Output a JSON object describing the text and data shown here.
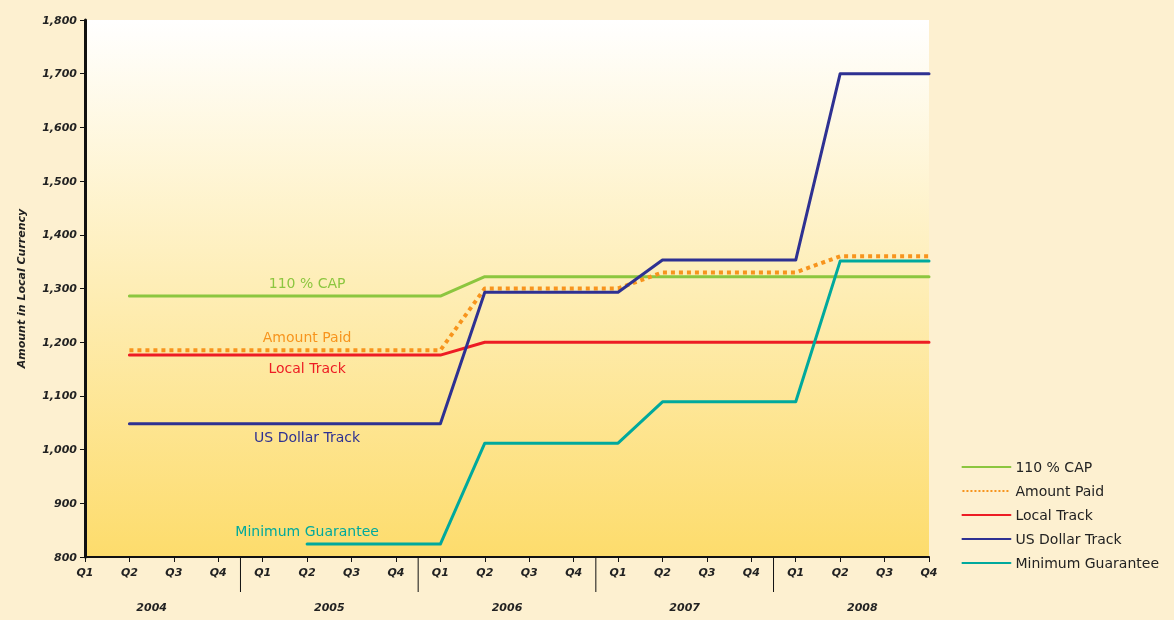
{
  "chart_data": {
    "type": "line",
    "ylabel": "Amount in Local Currency",
    "categories": [
      "Q1",
      "Q2",
      "Q3",
      "Q4",
      "Q1",
      "Q2",
      "Q3",
      "Q4",
      "Q1",
      "Q2",
      "Q3",
      "Q4",
      "Q1",
      "Q2",
      "Q3",
      "Q4",
      "Q1",
      "Q2",
      "Q3",
      "Q4"
    ],
    "annotations": [
      "2004",
      "2005",
      "2006",
      "2007",
      "2008"
    ],
    "ylim": [
      800,
      1800
    ],
    "yticks": [
      {
        "value": 800,
        "label": "800"
      },
      {
        "value": 900,
        "label": "900"
      },
      {
        "value": 1000,
        "label": "1,000"
      },
      {
        "value": 1100,
        "label": "1,100"
      },
      {
        "value": 1200,
        "label": "1,200"
      },
      {
        "value": 1300,
        "label": "1,300"
      },
      {
        "value": 1400,
        "label": "1,400"
      },
      {
        "value": 1500,
        "label": "1,500"
      },
      {
        "value": 1600,
        "label": "1,600"
      },
      {
        "value": 1700,
        "label": "1,700"
      },
      {
        "value": 1800,
        "label": "1,800"
      }
    ],
    "grid": false,
    "legend": "bottom right",
    "marker": "none",
    "line_style": "solid",
    "series": [
      {
        "name": "110 % CAP",
        "color": "#8cc63f",
        "values": [
          null,
          1286,
          1286,
          1286,
          1286,
          1286,
          1286,
          1286,
          1286,
          1322,
          1322,
          1322,
          1322,
          1322,
          1322,
          1322,
          1322,
          1322,
          1322,
          1322
        ]
      },
      {
        "name": "Amount Paid",
        "color": "#f7941d",
        "line_style": "dotted",
        "values": [
          null,
          1185,
          1185,
          1185,
          1185,
          1185,
          1185,
          1185,
          1185,
          1300,
          1300,
          1300,
          1300,
          1330,
          1330,
          1330,
          1330,
          1360,
          1360,
          1360
        ]
      },
      {
        "name": "Local Track",
        "color": "#ed1c24",
        "values": [
          null,
          1176,
          1176,
          1176,
          1176,
          1176,
          1176,
          1176,
          1176,
          1200,
          1200,
          1200,
          1200,
          1200,
          1200,
          1200,
          1200,
          1200,
          1200,
          1200
        ]
      },
      {
        "name": "US Dollar Track",
        "color": "#2e3192",
        "values": [
          null,
          1048,
          1048,
          1048,
          1048,
          1048,
          1048,
          1048,
          1048,
          1293,
          1293,
          1293,
          1293,
          1353,
          1353,
          1353,
          1353,
          1700,
          1700,
          1700
        ]
      },
      {
        "name": "Minimum Guarantee",
        "color": "#00a99d",
        "values": [
          null,
          null,
          null,
          null,
          null,
          824,
          824,
          824,
          824,
          1012,
          1012,
          1012,
          1012,
          1089,
          1089,
          1089,
          1089,
          1351,
          1351,
          1351
        ]
      }
    ]
  }
}
